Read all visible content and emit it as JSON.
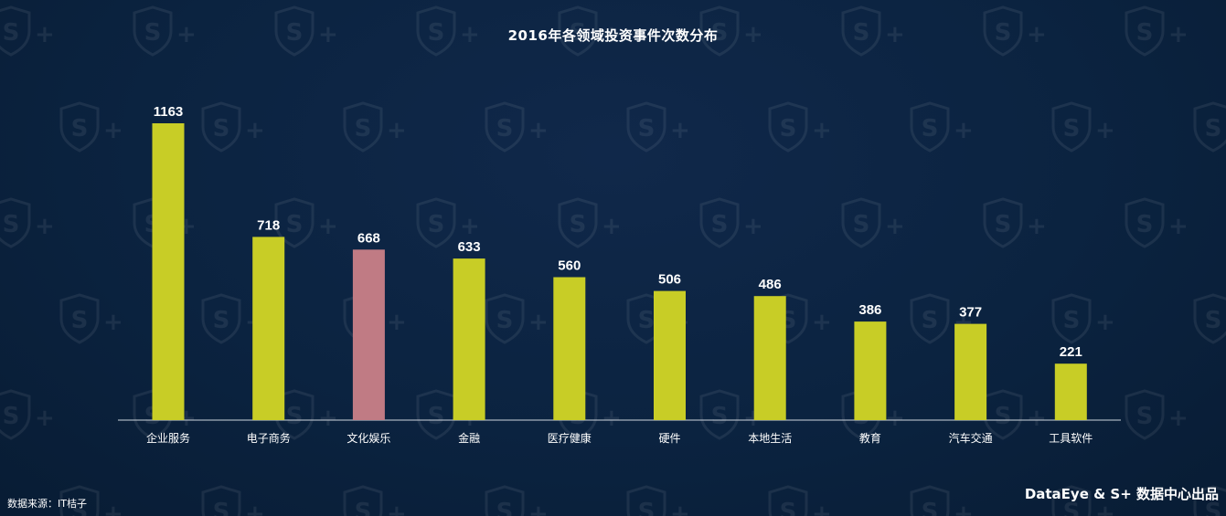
{
  "chart_data": {
    "type": "bar",
    "title": "2016年各领域投资事件次数分布",
    "categories": [
      "企业服务",
      "电子商务",
      "文化娱乐",
      "金融",
      "医疗健康",
      "硬件",
      "本地生活",
      "教育",
      "汽车交通",
      "工具软件"
    ],
    "values": [
      1163,
      718,
      668,
      633,
      560,
      506,
      486,
      386,
      377,
      221
    ],
    "xlabel": "",
    "ylabel": "",
    "ylim": [
      0,
      1163
    ],
    "grid": false,
    "legend": "none",
    "colors": {
      "bar": "#c8cd26",
      "highlight": "#c07b84",
      "axis": "#cfd6de",
      "text": "#ffffff"
    },
    "highlight_index": 2
  },
  "footer": {
    "source": "数据来源：IT桔子",
    "brand": "DataEye & S+ 数据中心出品"
  },
  "watermark": {
    "icon": "s-plus-shield-icon"
  }
}
